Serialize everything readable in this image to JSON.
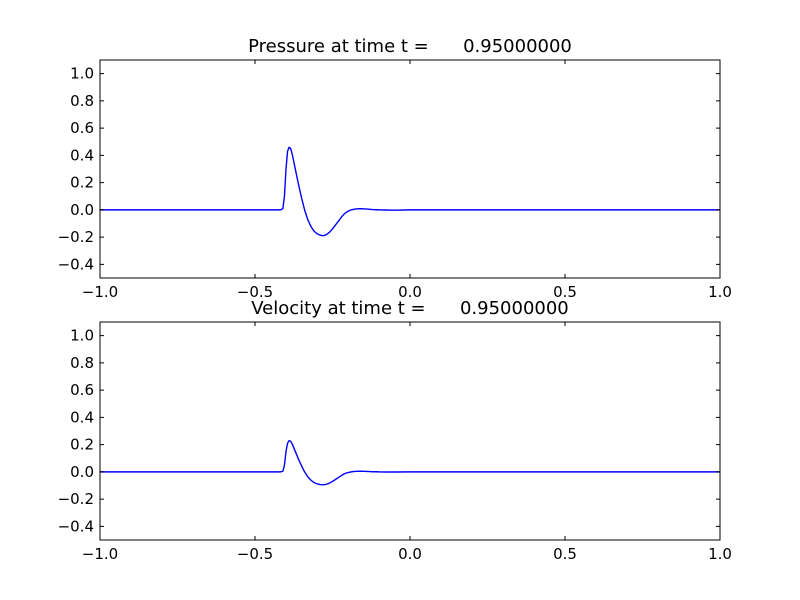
{
  "chart_data": [
    {
      "type": "line",
      "title": "Pressure at time t =      0.95000000",
      "xlabel": "",
      "ylabel": "",
      "xlim": [
        -1.0,
        1.0
      ],
      "ylim": [
        -0.5,
        1.1
      ],
      "xticks": [
        -1.0,
        -0.5,
        0.0,
        0.5,
        1.0
      ],
      "xtick_labels": [
        "−1.0",
        "−0.5",
        "0.0",
        "0.5",
        "1.0"
      ],
      "yticks": [
        -0.4,
        -0.2,
        0.0,
        0.2,
        0.4,
        0.6,
        0.8,
        1.0
      ],
      "ytick_labels": [
        "−0.4",
        "−0.2",
        "0.0",
        "0.2",
        "0.4",
        "0.6",
        "0.8",
        "1.0"
      ],
      "grid": false,
      "series": [
        {
          "color": "#0000ff",
          "x": [
            -1.0,
            -0.9,
            -0.8,
            -0.7,
            -0.6,
            -0.5,
            -0.45,
            -0.42,
            -0.415,
            -0.41,
            -0.405,
            -0.4,
            -0.395,
            -0.39,
            -0.385,
            -0.38,
            -0.37,
            -0.36,
            -0.35,
            -0.34,
            -0.33,
            -0.32,
            -0.31,
            -0.3,
            -0.29,
            -0.28,
            -0.27,
            -0.26,
            -0.25,
            -0.24,
            -0.23,
            -0.22,
            -0.21,
            -0.2,
            -0.19,
            -0.18,
            -0.17,
            -0.16,
            -0.15,
            -0.14,
            -0.13,
            -0.12,
            -0.11,
            -0.1,
            -0.08,
            -0.05,
            0.0,
            0.1,
            0.2,
            0.3,
            0.4,
            0.5,
            0.6,
            0.7,
            0.8,
            0.9,
            1.0
          ],
          "y": [
            0.0,
            0.0,
            0.0,
            0.0,
            0.0,
            0.0,
            0.0,
            0.0,
            0.002,
            0.01,
            0.1,
            0.3,
            0.43,
            0.46,
            0.45,
            0.41,
            0.3,
            0.19,
            0.09,
            0.0,
            -0.07,
            -0.12,
            -0.155,
            -0.175,
            -0.185,
            -0.19,
            -0.182,
            -0.165,
            -0.14,
            -0.11,
            -0.08,
            -0.05,
            -0.025,
            -0.01,
            0.0,
            0.005,
            0.008,
            0.009,
            0.008,
            0.006,
            0.004,
            0.002,
            0.001,
            0.0,
            -0.001,
            -0.002,
            0.0,
            0.0,
            0.0,
            0.0,
            0.0,
            0.0,
            0.0,
            0.0,
            0.0,
            0.0,
            0.0
          ]
        }
      ]
    },
    {
      "type": "line",
      "title": "Velocity at time t =      0.95000000",
      "xlabel": "",
      "ylabel": "",
      "xlim": [
        -1.0,
        1.0
      ],
      "ylim": [
        -0.5,
        1.1
      ],
      "xticks": [
        -1.0,
        -0.5,
        0.0,
        0.5,
        1.0
      ],
      "xtick_labels": [
        "−1.0",
        "−0.5",
        "0.0",
        "0.5",
        "1.0"
      ],
      "yticks": [
        -0.4,
        -0.2,
        0.0,
        0.2,
        0.4,
        0.6,
        0.8,
        1.0
      ],
      "ytick_labels": [
        "−0.4",
        "−0.2",
        "0.0",
        "0.2",
        "0.4",
        "0.6",
        "0.8",
        "1.0"
      ],
      "grid": false,
      "series": [
        {
          "color": "#0000ff",
          "x": [
            -1.0,
            -0.9,
            -0.8,
            -0.7,
            -0.6,
            -0.5,
            -0.45,
            -0.42,
            -0.415,
            -0.41,
            -0.405,
            -0.4,
            -0.395,
            -0.39,
            -0.385,
            -0.38,
            -0.37,
            -0.36,
            -0.35,
            -0.34,
            -0.33,
            -0.32,
            -0.31,
            -0.3,
            -0.29,
            -0.28,
            -0.27,
            -0.26,
            -0.25,
            -0.24,
            -0.23,
            -0.22,
            -0.21,
            -0.2,
            -0.19,
            -0.18,
            -0.17,
            -0.16,
            -0.15,
            -0.14,
            -0.13,
            -0.12,
            -0.11,
            -0.1,
            -0.08,
            -0.05,
            0.0,
            0.1,
            0.2,
            0.3,
            0.4,
            0.5,
            0.6,
            0.7,
            0.8,
            0.9,
            1.0
          ],
          "y": [
            0.0,
            0.0,
            0.0,
            0.0,
            0.0,
            0.0,
            0.0,
            0.0,
            0.001,
            0.005,
            0.05,
            0.15,
            0.21,
            0.23,
            0.225,
            0.205,
            0.15,
            0.095,
            0.045,
            0.0,
            -0.035,
            -0.06,
            -0.078,
            -0.088,
            -0.093,
            -0.095,
            -0.091,
            -0.083,
            -0.07,
            -0.055,
            -0.04,
            -0.025,
            -0.012,
            -0.005,
            0.0,
            0.003,
            0.004,
            0.005,
            0.004,
            0.003,
            0.002,
            0.001,
            0.001,
            0.0,
            -0.001,
            -0.001,
            0.0,
            0.0,
            0.0,
            0.0,
            0.0,
            0.0,
            0.0,
            0.0,
            0.0,
            0.0,
            0.0
          ]
        }
      ]
    }
  ]
}
